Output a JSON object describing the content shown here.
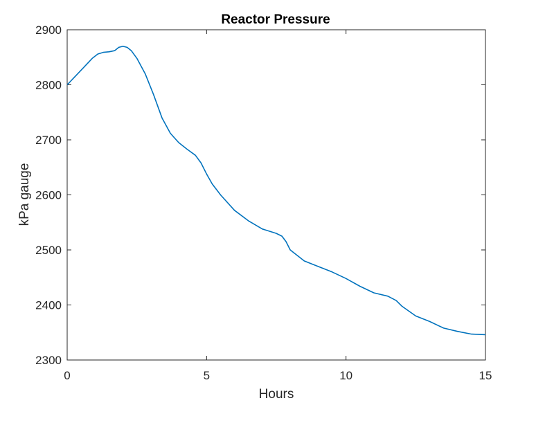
{
  "chart_data": {
    "type": "line",
    "title": "Reactor Pressure",
    "xlabel": "Hours",
    "ylabel": "kPa gauge",
    "xlim": [
      0,
      15
    ],
    "ylim": [
      2300,
      2900
    ],
    "xticks": [
      0,
      5,
      10,
      15
    ],
    "xtick_labels": [
      "0",
      "5",
      "10",
      "15"
    ],
    "yticks": [
      2300,
      2400,
      2500,
      2600,
      2700,
      2800,
      2900
    ],
    "ytick_labels": [
      "2300",
      "2400",
      "2500",
      "2600",
      "2700",
      "2800",
      "2900"
    ],
    "grid": false,
    "line_color": "#0072BD",
    "series": [
      {
        "x": [
          0,
          0.3,
          0.6,
          0.9,
          1.1,
          1.3,
          1.5,
          1.7,
          1.85,
          2.0,
          2.15,
          2.3,
          2.5,
          2.8,
          3.1,
          3.4,
          3.7,
          4.0,
          4.3,
          4.6,
          4.8,
          5.0,
          5.2,
          5.5,
          6.0,
          6.5,
          7.0,
          7.5,
          7.7,
          7.85,
          8.0,
          8.5,
          9.0,
          9.5,
          10.0,
          10.5,
          11.0,
          11.5,
          11.8,
          12.0,
          12.5,
          13.0,
          13.5,
          14.0,
          14.5,
          15.0
        ],
        "y": [
          2800,
          2816,
          2832,
          2848,
          2856,
          2859,
          2860,
          2862,
          2868,
          2870,
          2868,
          2862,
          2848,
          2820,
          2782,
          2740,
          2712,
          2695,
          2683,
          2672,
          2658,
          2638,
          2620,
          2600,
          2572,
          2553,
          2538,
          2530,
          2525,
          2515,
          2500,
          2480,
          2470,
          2460,
          2448,
          2434,
          2422,
          2416,
          2408,
          2398,
          2380,
          2370,
          2358,
          2352,
          2347,
          2346
        ]
      }
    ]
  }
}
